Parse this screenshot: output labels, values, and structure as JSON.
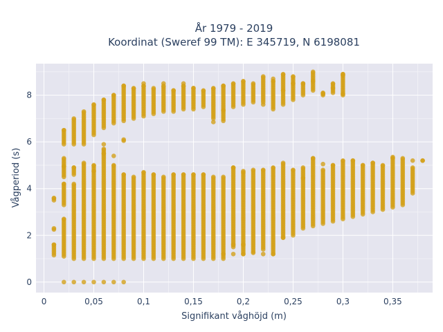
{
  "chart_data": {
    "type": "scatter",
    "title_line1": "År 1979 - 2019",
    "title_line2": "Koordinat (Sweref 99 TM): E 345719, N 6198081",
    "xlabel": "Signifikant våghöjd (m)",
    "ylabel": "Vågperiod (s)",
    "xlim": [
      -0.008,
      0.39
    ],
    "ylim": [
      -0.45,
      9.35
    ],
    "x_ticks": [
      0,
      0.05,
      0.1,
      0.15,
      0.2,
      0.25,
      0.3,
      0.35
    ],
    "x_tick_labels": [
      "0",
      "0,05",
      "0,1",
      "0,15",
      "0,2",
      "0,25",
      "0,3",
      "0,35"
    ],
    "y_ticks": [
      0,
      2,
      4,
      6,
      8
    ],
    "y_tick_labels": [
      "0",
      "2",
      "4",
      "6",
      "8"
    ],
    "grid": true,
    "marker_color": "#d4a017",
    "background_color": "#e5e5ef",
    "series": [
      {
        "columns": [
          {
            "x": 0.01,
            "segments": [
              [
                1.15,
                1.6
              ],
              [
                2.25,
                2.3
              ],
              [
                3.5,
                3.6
              ]
            ]
          },
          {
            "x": 0.02,
            "segments": [
              [
                0.0,
                0.0
              ],
              [
                1.1,
                2.7
              ],
              [
                3.3,
                4.2
              ],
              [
                4.5,
                5.3
              ],
              [
                5.9,
                6.5
              ]
            ]
          },
          {
            "x": 0.03,
            "segments": [
              [
                0.0,
                0.0
              ],
              [
                1.0,
                4.2
              ],
              [
                4.6,
                4.9
              ],
              [
                5.9,
                7.0
              ]
            ]
          },
          {
            "x": 0.04,
            "segments": [
              [
                0.0,
                0.0
              ],
              [
                1.0,
                5.1
              ],
              [
                5.9,
                7.3
              ]
            ]
          },
          {
            "x": 0.05,
            "segments": [
              [
                0.0,
                0.0
              ],
              [
                1.0,
                5.0
              ],
              [
                6.3,
                7.6
              ]
            ]
          },
          {
            "x": 0.06,
            "segments": [
              [
                0.0,
                0.0
              ],
              [
                1.0,
                5.7
              ],
              [
                6.6,
                7.8
              ]
            ]
          },
          {
            "x": 0.07,
            "segments": [
              [
                0.0,
                0.0
              ],
              [
                1.0,
                5.0
              ],
              [
                6.8,
                8.0
              ]
            ]
          },
          {
            "x": 0.08,
            "segments": [
              [
                0.0,
                0.0
              ],
              [
                1.0,
                4.6
              ],
              [
                6.1,
                6.1
              ],
              [
                6.9,
                8.4
              ]
            ]
          },
          {
            "x": 0.09,
            "segments": [
              [
                1.0,
                4.5
              ],
              [
                7.0,
                8.3
              ]
            ]
          },
          {
            "x": 0.1,
            "segments": [
              [
                1.0,
                4.7
              ],
              [
                7.1,
                8.4
              ]
            ]
          },
          {
            "x": 0.11,
            "segments": [
              [
                1.0,
                4.6
              ],
              [
                7.2,
                8.3
              ]
            ]
          },
          {
            "x": 0.12,
            "segments": [
              [
                1.0,
                4.5
              ],
              [
                7.3,
                8.4
              ]
            ]
          },
          {
            "x": 0.13,
            "segments": [
              [
                1.0,
                4.6
              ],
              [
                7.3,
                8.2
              ]
            ]
          },
          {
            "x": 0.14,
            "segments": [
              [
                1.0,
                4.6
              ],
              [
                7.4,
                8.4
              ]
            ]
          },
          {
            "x": 0.15,
            "segments": [
              [
                1.0,
                4.6
              ],
              [
                7.4,
                8.3
              ]
            ]
          },
          {
            "x": 0.16,
            "segments": [
              [
                1.0,
                4.6
              ],
              [
                7.5,
                8.2
              ]
            ]
          },
          {
            "x": 0.17,
            "segments": [
              [
                1.0,
                4.5
              ],
              [
                7.0,
                8.3
              ]
            ]
          },
          {
            "x": 0.18,
            "segments": [
              [
                1.0,
                4.5
              ],
              [
                6.9,
                8.4
              ]
            ]
          },
          {
            "x": 0.19,
            "segments": [
              [
                1.5,
                4.9
              ],
              [
                7.5,
                8.5
              ]
            ]
          },
          {
            "x": 0.2,
            "segments": [
              [
                1.2,
                4.7
              ],
              [
                7.6,
                8.6
              ]
            ]
          },
          {
            "x": 0.21,
            "segments": [
              [
                1.3,
                4.8
              ],
              [
                7.7,
                8.5
              ]
            ]
          },
          {
            "x": 0.22,
            "segments": [
              [
                1.4,
                4.8
              ],
              [
                7.7,
                8.8
              ]
            ]
          },
          {
            "x": 0.23,
            "segments": [
              [
                1.2,
                4.9
              ],
              [
                7.4,
                8.6
              ]
            ]
          },
          {
            "x": 0.24,
            "segments": [
              [
                1.9,
                5.1
              ],
              [
                7.6,
                8.9
              ]
            ]
          },
          {
            "x": 0.25,
            "segments": [
              [
                2.0,
                4.8
              ],
              [
                7.8,
                8.8
              ]
            ]
          },
          {
            "x": 0.26,
            "segments": [
              [
                2.3,
                4.9
              ],
              [
                8.0,
                8.5
              ]
            ]
          },
          {
            "x": 0.27,
            "segments": [
              [
                2.4,
                5.3
              ],
              [
                8.2,
                9.0
              ]
            ]
          },
          {
            "x": 0.28,
            "segments": [
              [
                2.5,
                4.8
              ],
              [
                8.0,
                8.1
              ]
            ]
          },
          {
            "x": 0.29,
            "segments": [
              [
                2.6,
                5.0
              ],
              [
                8.1,
                8.5
              ]
            ]
          },
          {
            "x": 0.3,
            "segments": [
              [
                2.7,
                5.2
              ],
              [
                8.0,
                8.9
              ]
            ]
          },
          {
            "x": 0.31,
            "segments": [
              [
                2.8,
                5.2
              ]
            ]
          },
          {
            "x": 0.32,
            "segments": [
              [
                2.9,
                5.0
              ]
            ]
          },
          {
            "x": 0.33,
            "segments": [
              [
                3.0,
                5.1
              ]
            ]
          },
          {
            "x": 0.34,
            "segments": [
              [
                3.1,
                5.0
              ]
            ]
          },
          {
            "x": 0.35,
            "segments": [
              [
                3.2,
                5.3
              ]
            ]
          },
          {
            "x": 0.36,
            "segments": [
              [
                3.3,
                5.3
              ]
            ]
          },
          {
            "x": 0.37,
            "segments": [
              [
                3.8,
                4.9
              ]
            ]
          },
          {
            "x": 0.38,
            "segments": [
              [
                5.2,
                5.2
              ]
            ]
          }
        ],
        "extra_points": [
          [
            0.08,
            6.05
          ],
          [
            0.07,
            5.4
          ],
          [
            0.06,
            5.5
          ],
          [
            0.05,
            4.75
          ],
          [
            0.02,
            4.95
          ],
          [
            0.18,
            1.2
          ],
          [
            0.19,
            1.2
          ],
          [
            0.2,
            1.2
          ],
          [
            0.21,
            1.25
          ],
          [
            0.22,
            1.2
          ],
          [
            0.23,
            1.2
          ],
          [
            0.24,
            1.9
          ],
          [
            0.2,
            1.6
          ],
          [
            0.19,
            1.6
          ],
          [
            0.19,
            4.9
          ],
          [
            0.2,
            4.75
          ],
          [
            0.26,
            4.45
          ],
          [
            0.28,
            5.05
          ],
          [
            0.27,
            5.3
          ],
          [
            0.35,
            5.35
          ],
          [
            0.37,
            5.2
          ],
          [
            0.38,
            5.2
          ],
          [
            0.17,
            6.85
          ],
          [
            0.18,
            7.35
          ],
          [
            0.22,
            7.6
          ],
          [
            0.23,
            8.7
          ],
          [
            0.24,
            8.2
          ],
          [
            0.25,
            8.5
          ],
          [
            0.26,
            8.5
          ],
          [
            0.28,
            8.05
          ],
          [
            0.27,
            8.6
          ],
          [
            0.29,
            8.3
          ],
          [
            0.3,
            8.85
          ],
          [
            0.3,
            8.05
          ],
          [
            0.14,
            8.5
          ],
          [
            0.12,
            8.5
          ],
          [
            0.1,
            8.5
          ],
          [
            0.06,
            5.9
          ]
        ]
      }
    ]
  }
}
